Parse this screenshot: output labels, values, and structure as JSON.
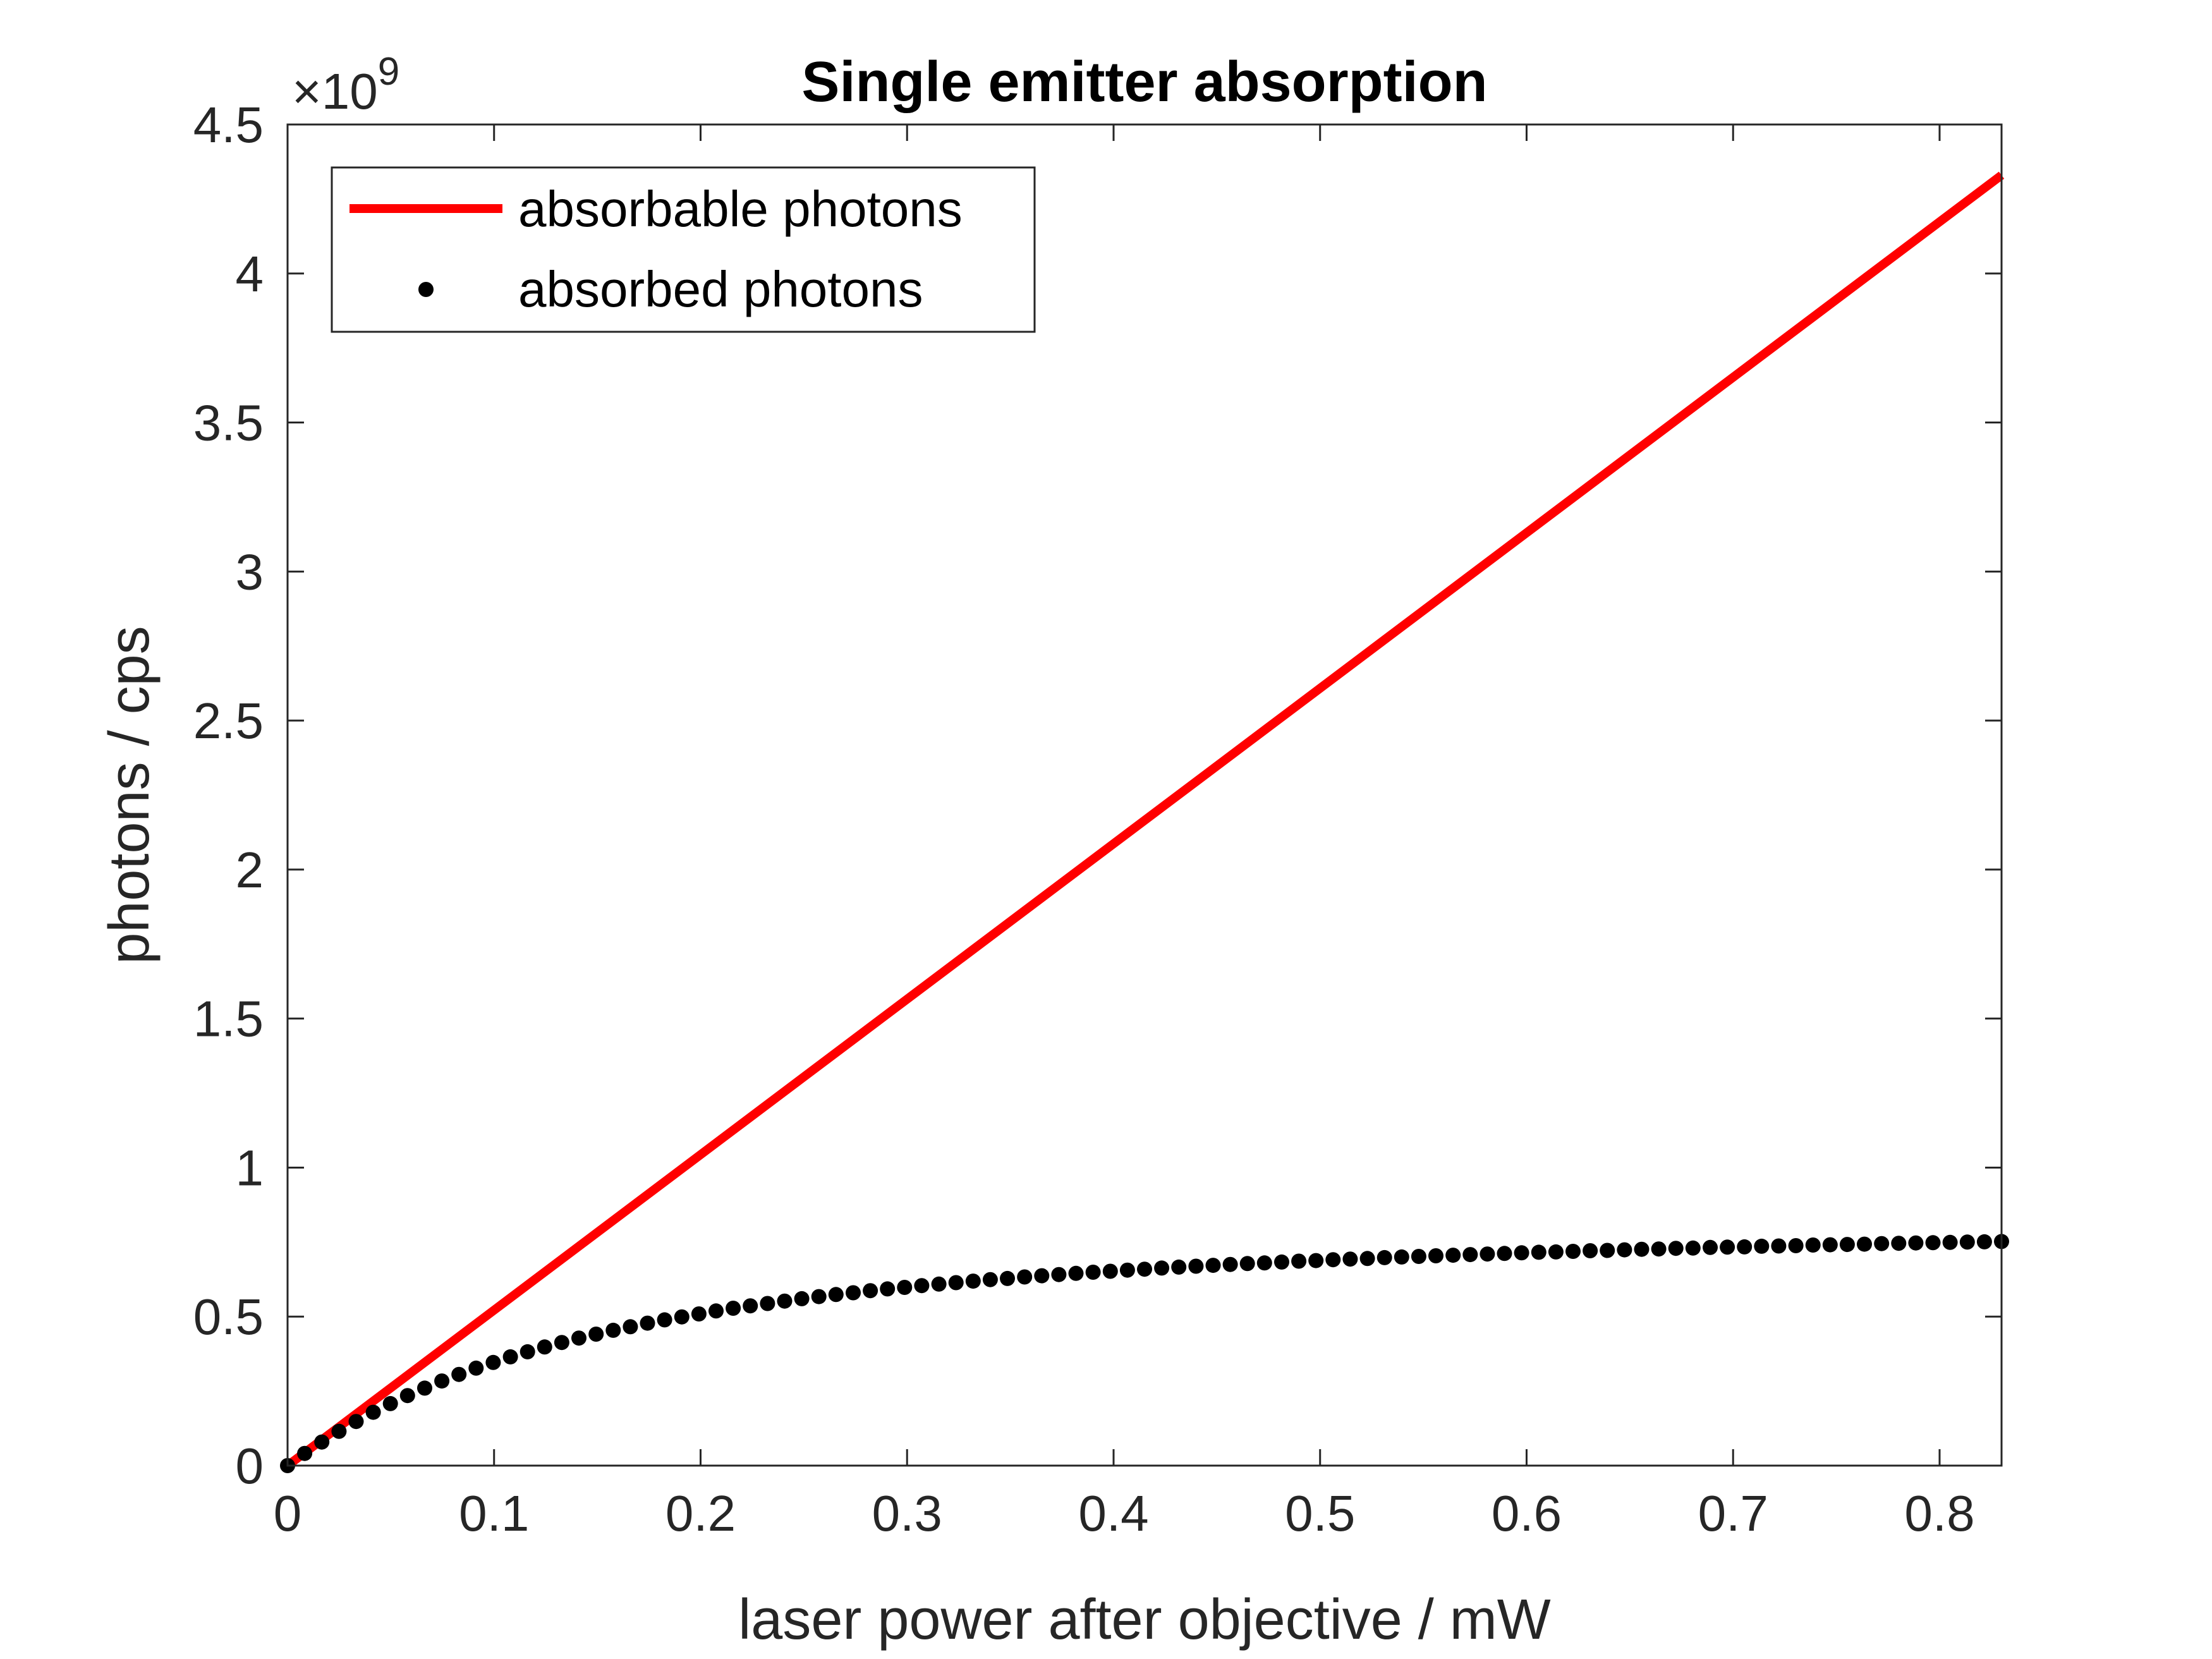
{
  "chart_data": {
    "type": "line",
    "title": "Single emitter absorption",
    "xlabel": "laser power after objective / mW",
    "ylabel": "photons / cps",
    "y_exponent_label": "×10",
    "y_exponent_power": "9",
    "xlim": [
      0,
      0.83
    ],
    "ylim": [
      0,
      4.5
    ],
    "y_multiplier": 1000000000,
    "xticks": [
      0,
      0.1,
      0.2,
      0.3,
      0.4,
      0.5,
      0.6,
      0.7,
      0.8
    ],
    "xtick_labels": [
      "0",
      "0.1",
      "0.2",
      "0.3",
      "0.4",
      "0.5",
      "0.6",
      "0.7",
      "0.8"
    ],
    "yticks": [
      0,
      0.5,
      1,
      1.5,
      2,
      2.5,
      3,
      3.5,
      4,
      4.5
    ],
    "ytick_labels": [
      "0",
      "0.5",
      "1",
      "1.5",
      "2",
      "2.5",
      "3",
      "3.5",
      "4",
      "4.5"
    ],
    "grid": false,
    "legend_position": "top-left",
    "series": [
      {
        "name": "absorbable photons",
        "style": "line",
        "color": "#ff0000",
        "x": [
          0,
          0.83
        ],
        "y": [
          0,
          4.33
        ]
      },
      {
        "name": "absorbed photons",
        "style": "markers",
        "color": "#000000",
        "x": [
          0,
          0.0083,
          0.0166,
          0.0249,
          0.0332,
          0.0415,
          0.0498,
          0.0581,
          0.0664,
          0.0747,
          0.083,
          0.0913,
          0.0996,
          0.1079,
          0.1162,
          0.1245,
          0.1328,
          0.1411,
          0.1494,
          0.1577,
          0.166,
          0.1743,
          0.1826,
          0.1909,
          0.1992,
          0.2075,
          0.2158,
          0.2241,
          0.2324,
          0.2407,
          0.249,
          0.2573,
          0.2656,
          0.2739,
          0.2822,
          0.2905,
          0.2988,
          0.3071,
          0.3154,
          0.3237,
          0.332,
          0.3403,
          0.3486,
          0.3569,
          0.3652,
          0.3735,
          0.3818,
          0.3901,
          0.3984,
          0.4067,
          0.415,
          0.4233,
          0.4316,
          0.4399,
          0.4482,
          0.4565,
          0.4648,
          0.4731,
          0.4814,
          0.4897,
          0.498,
          0.5063,
          0.5146,
          0.5229,
          0.5312,
          0.5395,
          0.5478,
          0.5561,
          0.5644,
          0.5727,
          0.581,
          0.5893,
          0.5976,
          0.6059,
          0.6142,
          0.6225,
          0.6308,
          0.6391,
          0.6474,
          0.6557,
          0.664,
          0.6723,
          0.6806,
          0.6889,
          0.6972,
          0.7055,
          0.7138,
          0.7221,
          0.7304,
          0.7387,
          0.747,
          0.7553,
          0.7636,
          0.7719,
          0.7802,
          0.7885,
          0.7968,
          0.8051,
          0.8134,
          0.8217,
          0.83
        ],
        "y": [
          0,
          0.041,
          0.079,
          0.115,
          0.148,
          0.179,
          0.208,
          0.235,
          0.26,
          0.284,
          0.306,
          0.327,
          0.346,
          0.365,
          0.382,
          0.398,
          0.413,
          0.428,
          0.441,
          0.454,
          0.466,
          0.478,
          0.489,
          0.499,
          0.509,
          0.519,
          0.528,
          0.536,
          0.544,
          0.552,
          0.56,
          0.567,
          0.574,
          0.58,
          0.587,
          0.593,
          0.598,
          0.604,
          0.609,
          0.614,
          0.619,
          0.624,
          0.628,
          0.633,
          0.637,
          0.641,
          0.645,
          0.649,
          0.652,
          0.656,
          0.659,
          0.663,
          0.666,
          0.669,
          0.672,
          0.675,
          0.678,
          0.68,
          0.683,
          0.686,
          0.688,
          0.691,
          0.693,
          0.695,
          0.698,
          0.7,
          0.702,
          0.704,
          0.706,
          0.708,
          0.71,
          0.712,
          0.714,
          0.716,
          0.717,
          0.719,
          0.721,
          0.722,
          0.724,
          0.726,
          0.727,
          0.729,
          0.73,
          0.732,
          0.733,
          0.734,
          0.736,
          0.737,
          0.738,
          0.74,
          0.741,
          0.742,
          0.743,
          0.745,
          0.746,
          0.747,
          0.748,
          0.749,
          0.75,
          0.751,
          0.752
        ]
      }
    ]
  }
}
